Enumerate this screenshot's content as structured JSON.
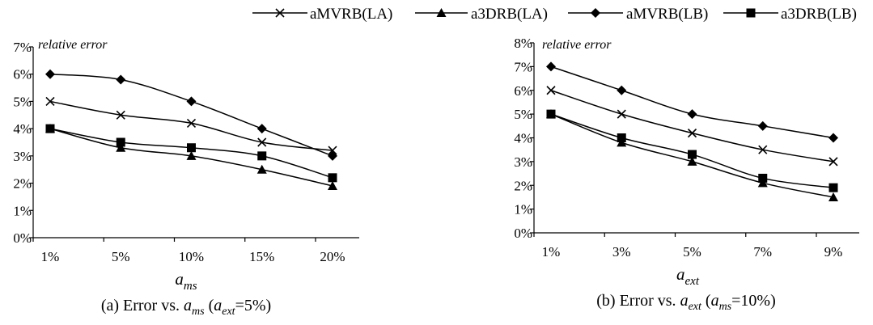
{
  "legend": [
    {
      "name": "aMVRB(LA)",
      "marker": "x"
    },
    {
      "name": "a3DRB(LA)",
      "marker": "triangle"
    },
    {
      "name": "aMVRB(LB)",
      "marker": "diamond"
    },
    {
      "name": "a3DRB(LB)",
      "marker": "square"
    }
  ],
  "chart_data": [
    {
      "type": "line",
      "title": "",
      "annotation": "relative error",
      "xlabel": {
        "base": "a",
        "sub": "ms"
      },
      "ylabel": "",
      "caption": {
        "lead": "(a) Error vs. ",
        "v1": "a",
        "s1": "ms",
        "mid": " (",
        "v2": "a",
        "s2": "ext",
        "tail": "=5%)"
      },
      "categories": [
        "1%",
        "5%",
        "10%",
        "15%",
        "20%"
      ],
      "yticks": [
        "0%",
        "1%",
        "2%",
        "3%",
        "4%",
        "5%",
        "6%",
        "7%"
      ],
      "ylim": [
        0,
        7
      ],
      "grid": false,
      "series": [
        {
          "name": "aMVRB(LA)",
          "marker": "x",
          "values": [
            5.0,
            4.5,
            4.2,
            3.5,
            3.2
          ]
        },
        {
          "name": "a3DRB(LA)",
          "marker": "triangle",
          "values": [
            4.0,
            3.3,
            3.0,
            2.5,
            1.9
          ]
        },
        {
          "name": "aMVRB(LB)",
          "marker": "diamond",
          "values": [
            6.0,
            5.8,
            5.0,
            4.0,
            3.0
          ]
        },
        {
          "name": "a3DRB(LB)",
          "marker": "square",
          "values": [
            4.0,
            3.5,
            3.3,
            3.0,
            2.2
          ]
        }
      ]
    },
    {
      "type": "line",
      "title": "",
      "annotation": "relative error",
      "xlabel": {
        "base": "a",
        "sub": "ext"
      },
      "ylabel": "",
      "caption": {
        "lead": "(b) Error vs. ",
        "v1": "a",
        "s1": "ext",
        "mid": " (",
        "v2": "a",
        "s2": "ms",
        "tail": "=10%)"
      },
      "categories": [
        "1%",
        "3%",
        "5%",
        "7%",
        "9%"
      ],
      "yticks": [
        "0%",
        "1%",
        "2%",
        "3%",
        "4%",
        "5%",
        "6%",
        "7%",
        "8%"
      ],
      "ylim": [
        0,
        8
      ],
      "grid": false,
      "series": [
        {
          "name": "aMVRB(LA)",
          "marker": "x",
          "values": [
            6.0,
            5.0,
            4.2,
            3.5,
            3.0
          ]
        },
        {
          "name": "a3DRB(LA)",
          "marker": "triangle",
          "values": [
            5.0,
            3.8,
            3.0,
            2.1,
            1.5
          ]
        },
        {
          "name": "aMVRB(LB)",
          "marker": "diamond",
          "values": [
            7.0,
            6.0,
            5.0,
            4.5,
            4.0
          ]
        },
        {
          "name": "a3DRB(LB)",
          "marker": "square",
          "values": [
            5.0,
            4.0,
            3.3,
            2.3,
            1.9
          ]
        }
      ]
    }
  ]
}
